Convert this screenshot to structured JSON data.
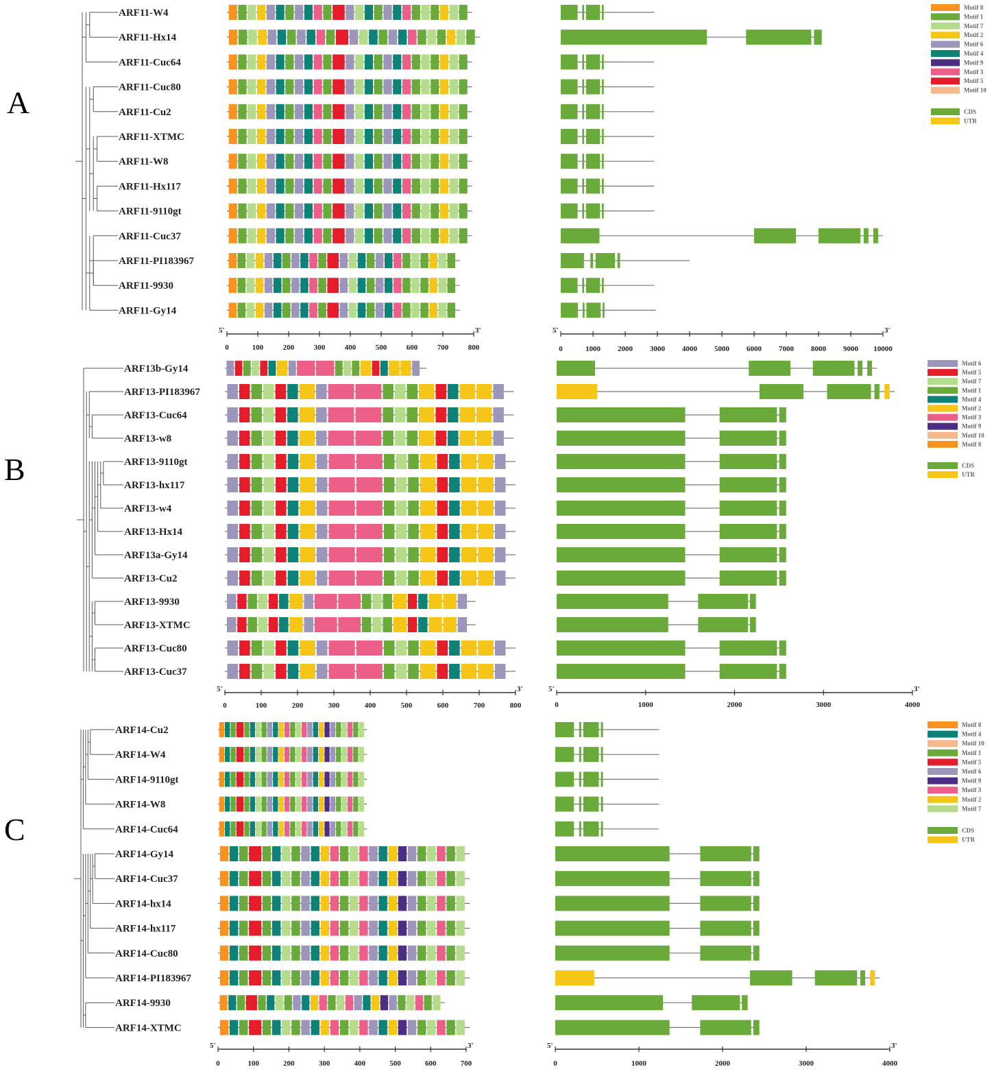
{
  "colors": {
    "Motif 1": "#6aaa3a",
    "Motif 2": "#f5c518",
    "Motif 3": "#eb5f88",
    "Motif 4": "#0f8278",
    "Motif 5": "#e51d2a",
    "Motif 6": "#9c97ba",
    "Motif 7": "#b5dc8a",
    "Motif 8": "#f7931e",
    "Motif 9": "#4b2d84",
    "Motif 10": "#f7b88d",
    "CDS": "#6aaa3a",
    "UTR": "#f5c518",
    "line": "#777777",
    "axis": "#333333",
    "tree": "#555555"
  },
  "panels": [
    {
      "label": "A",
      "genes": [
        "ARF11-W4",
        "ARF11-Hx14",
        "ARF11-Cuc64",
        "ARF11-Cuc80",
        "ARF11-Cu2",
        "ARF11-XTMC",
        "ARF11-W8",
        "ARF11-Hx117",
        "ARF11-9110gt",
        "ARF11-Cuc37",
        "ARF11-PI183967",
        "ARF11-9930",
        "ARF11-Gy14"
      ],
      "motif_axis": {
        "max": 800,
        "ticks": [
          "0",
          "100",
          "200",
          "300",
          "400",
          "500",
          "600",
          "700",
          "800"
        ],
        "start_label": "5'",
        "end_label": "3'"
      },
      "gene_axis": {
        "max": 10000,
        "ticks": [
          "0",
          "1000",
          "2000",
          "3000",
          "4000",
          "5000",
          "6000",
          "7000",
          "8000",
          "9000",
          "10000"
        ],
        "start_label": "5'",
        "end_label": "3'"
      },
      "legend_motifs": [
        "Motif 8",
        "Motif 1",
        "Motif 7",
        "Motif 2",
        "Motif 6",
        "Motif 4",
        "Motif 9",
        "Motif 3",
        "Motif 5",
        "Motif 10"
      ],
      "legend_structure": [
        "CDS",
        "UTR"
      ],
      "protein_lengths": [
        795,
        820,
        795,
        795,
        795,
        795,
        795,
        795,
        795,
        795,
        755,
        755,
        755
      ],
      "gene_lengths": [
        2900,
        8100,
        2900,
        2900,
        2900,
        2900,
        2900,
        2900,
        2900,
        10000,
        4000,
        2900,
        2950
      ]
    },
    {
      "label": "B",
      "genes": [
        "ARF13b-Gy14",
        "ARF13-PI183967",
        "ARF13-Cuc64",
        "ARF13-w8",
        "ARF13-9110gt",
        "ARF13-hx117",
        "ARF13-w4",
        "ARF13-Hx14",
        "ARF13a-Gy14",
        "ARF13-Cu2",
        "ARF13-9930",
        "ARF13-XTMC",
        "ARF13-Cuc80",
        "ARF13-Cuc37"
      ],
      "motif_axis": {
        "max": 800,
        "ticks": [
          "0",
          "100",
          "200",
          "300",
          "400",
          "500",
          "600",
          "700",
          "800"
        ],
        "start_label": "5'",
        "end_label": "3'"
      },
      "gene_axis": {
        "max": 4000,
        "ticks": [
          "0",
          "1000",
          "2000",
          "3000",
          "4000"
        ],
        "start_label": "5'",
        "end_label": "3'"
      },
      "legend_motifs": [
        "Motif 6",
        "Motif 5",
        "Motif 7",
        "Motif 1",
        "Motif 4",
        "Motif 2",
        "Motif 3",
        "Motif 9",
        "Motif 10",
        "Motif 8"
      ],
      "legend_structure": [
        "CDS",
        "UTR"
      ],
      "protein_lengths": [
        555,
        795,
        795,
        795,
        800,
        800,
        800,
        800,
        800,
        800,
        690,
        690,
        800,
        800
      ],
      "gene_lengths": [
        3600,
        3800,
        2580,
        2580,
        2580,
        2580,
        2580,
        2580,
        2580,
        2580,
        2240,
        2240,
        2580,
        2580
      ]
    },
    {
      "label": "C",
      "genes": [
        "ARF14-Cu2",
        "ARF14-W4",
        "ARF14-9110gt",
        "ARF14-W8",
        "ARF14-Cuc64",
        "ARF14-Gy14",
        "ARF14-Cuc37",
        "ARF14-hx14",
        "ARF14-hx117",
        "ARF14-Cuc80",
        "ARF14-PI183967",
        "ARF14-9930",
        "ARF14-XTMC"
      ],
      "motif_axis": {
        "max": 700,
        "ticks": [
          "0",
          "100",
          "200",
          "300",
          "400",
          "500",
          "600",
          "700"
        ],
        "start_label": "5'",
        "end_label": "3'"
      },
      "gene_axis": {
        "max": 4000,
        "ticks": [
          "0",
          "1000",
          "2000",
          "3000",
          "4000"
        ],
        "start_label": "5'",
        "end_label": "3'"
      },
      "legend_motifs": [
        "Motif 8",
        "Motif 4",
        "Motif 10",
        "Motif 1",
        "Motif 5",
        "Motif 6",
        "Motif 9",
        "Motif 3",
        "Motif 2",
        "Motif 7"
      ],
      "legend_structure": [
        "CDS",
        "UTR"
      ],
      "protein_lengths": [
        420,
        420,
        420,
        420,
        420,
        710,
        710,
        710,
        710,
        710,
        710,
        640,
        710
      ],
      "gene_lengths": [
        1240,
        1240,
        1240,
        1240,
        1240,
        2440,
        2440,
        2440,
        2440,
        2440,
        3880,
        2300,
        2440
      ]
    }
  ]
}
